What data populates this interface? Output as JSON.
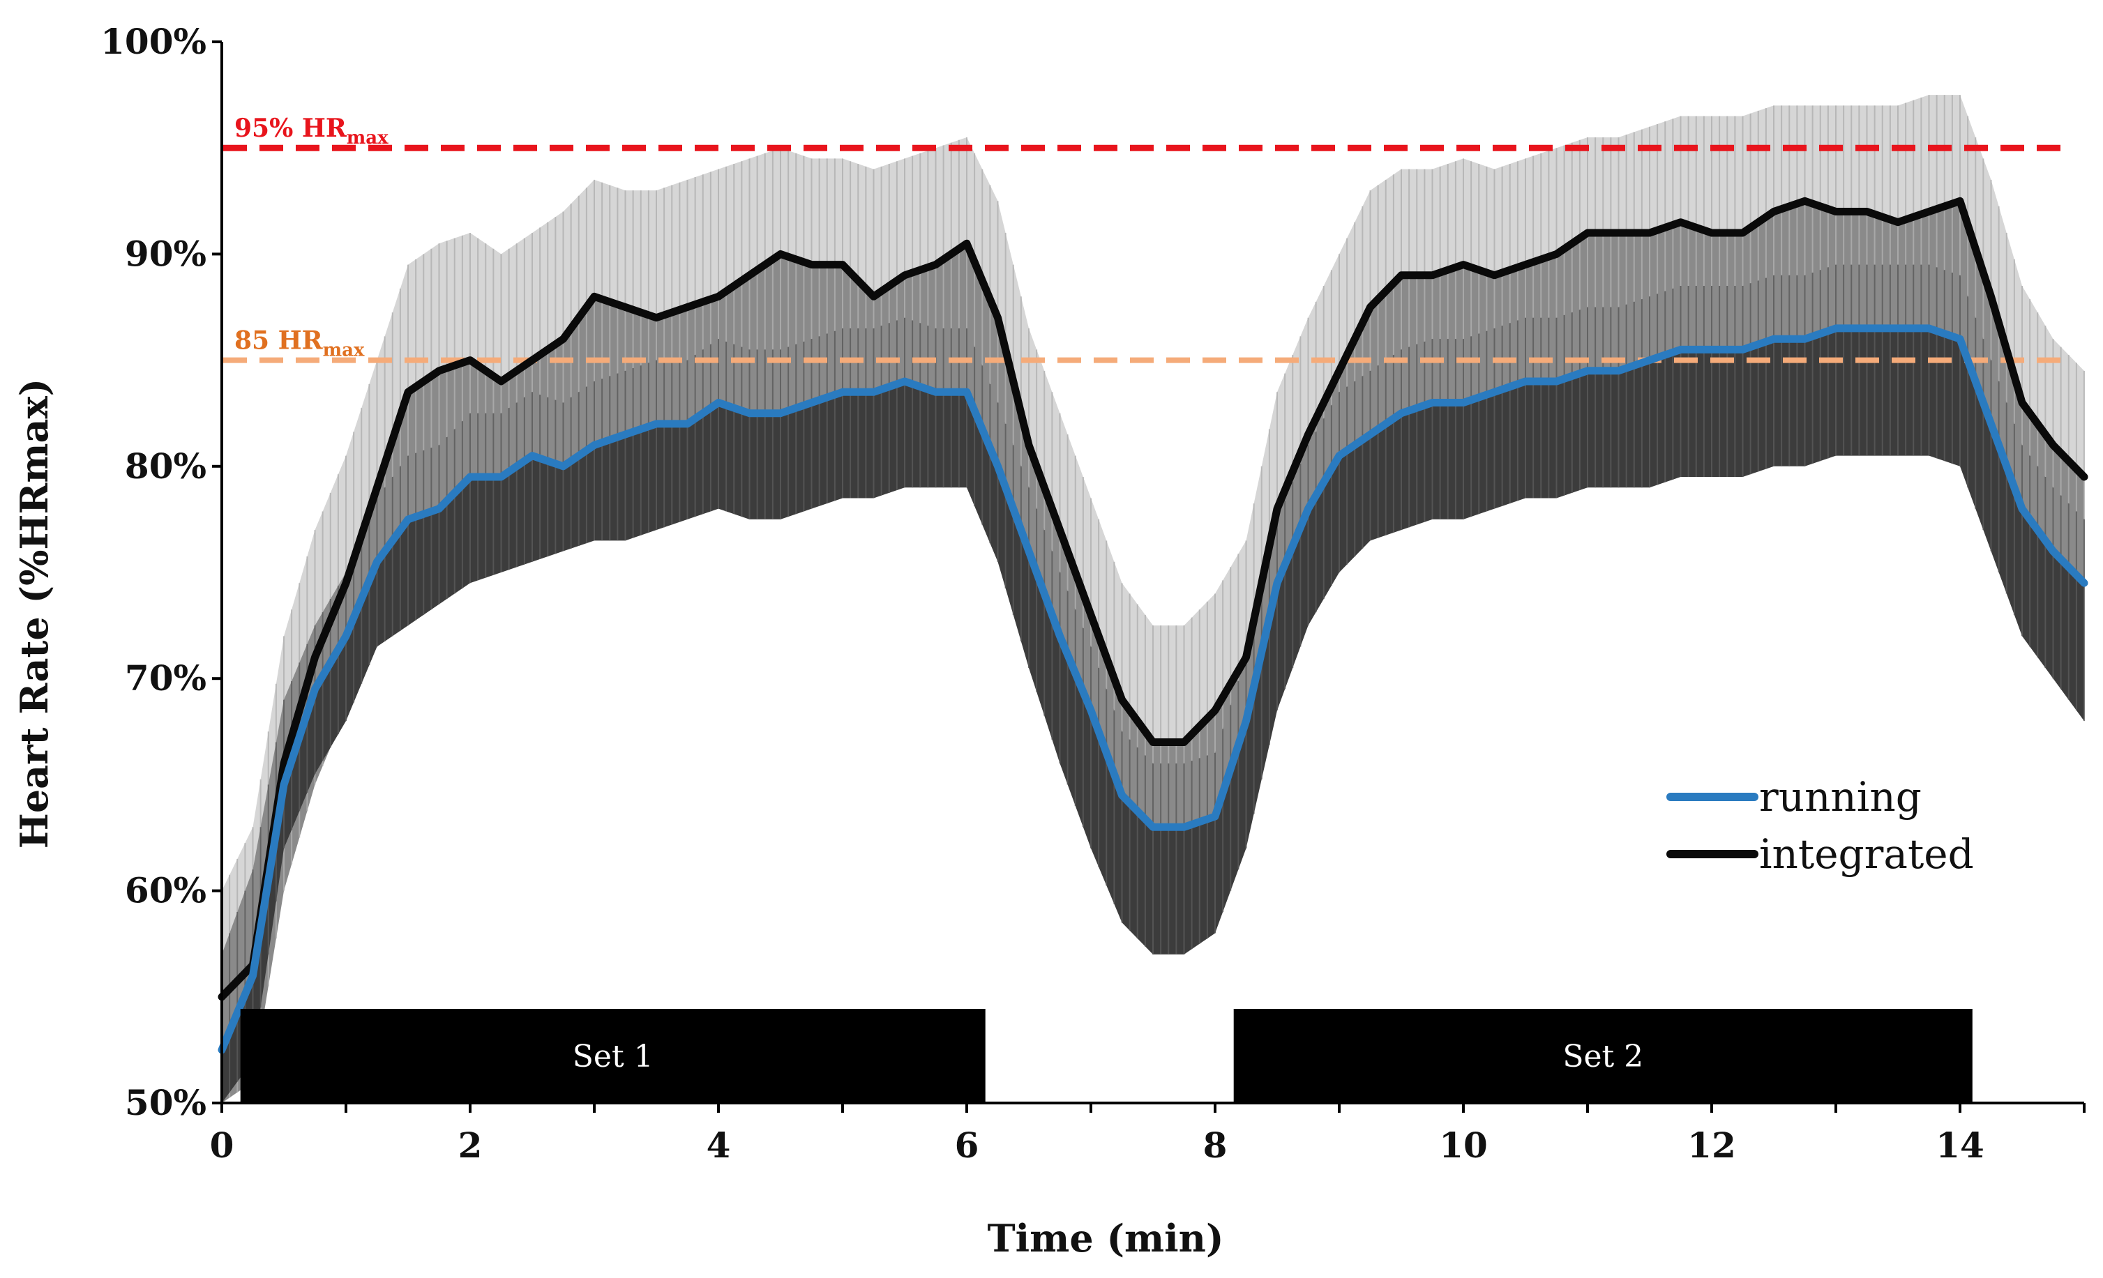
{
  "chart_data": {
    "type": "line",
    "title": "",
    "xlabel": "Time (min)",
    "ylabel": "Heart Rate (%HRmax)",
    "xlim": [
      0,
      15
    ],
    "ylim": [
      50,
      100
    ],
    "x_ticks": [
      0,
      2,
      4,
      6,
      8,
      10,
      12,
      14
    ],
    "x_tick_labels": [
      "0",
      "2",
      "4",
      "6",
      "8",
      "10",
      "12",
      "14"
    ],
    "y_ticks": [
      50,
      60,
      70,
      80,
      90,
      100
    ],
    "y_tick_labels": [
      "50%",
      "60%",
      "70%",
      "80%",
      "90%",
      "100%"
    ],
    "x": [
      0,
      0.25,
      0.5,
      0.75,
      1,
      1.25,
      1.5,
      1.75,
      2,
      2.25,
      2.5,
      2.75,
      3,
      3.25,
      3.5,
      3.75,
      4,
      4.25,
      4.5,
      4.75,
      5,
      5.25,
      5.5,
      5.75,
      6,
      6.25,
      6.5,
      6.75,
      7,
      7.25,
      7.5,
      7.75,
      8,
      8.25,
      8.5,
      8.75,
      9,
      9.25,
      9.5,
      9.75,
      10,
      10.25,
      10.5,
      10.75,
      11,
      11.25,
      11.5,
      11.75,
      12,
      12.25,
      12.5,
      12.75,
      13,
      13.25,
      13.5,
      13.75,
      14,
      14.25,
      14.5,
      14.75,
      15
    ],
    "series": [
      {
        "name": "running",
        "color": "#2a7bc0",
        "values": [
          52.5,
          56,
          65,
          69.5,
          72,
          75.5,
          77.5,
          78,
          79.5,
          79.5,
          80.5,
          80,
          81,
          81.5,
          82,
          82,
          83,
          82.5,
          82.5,
          83,
          83.5,
          83.5,
          84,
          83.5,
          83.5,
          80,
          76,
          72,
          68.5,
          64.5,
          63,
          63,
          63.5,
          68,
          74.5,
          78,
          80.5,
          81.5,
          82.5,
          83,
          83,
          83.5,
          84,
          84,
          84.5,
          84.5,
          85,
          85.5,
          85.5,
          85.5,
          86,
          86,
          86.5,
          86.5,
          86.5,
          86.5,
          86,
          82,
          78,
          76,
          74.5
        ],
        "error_upper": [
          57,
          61,
          69,
          72.5,
          75,
          78.5,
          80.5,
          81,
          82.5,
          82.5,
          83.5,
          83,
          84,
          84.5,
          85,
          85,
          86,
          85.5,
          85.5,
          86,
          86.5,
          86.5,
          87,
          86.5,
          86.5,
          83,
          79,
          75,
          71.5,
          67.5,
          66,
          66,
          66.5,
          71,
          77.5,
          81,
          83.5,
          84.5,
          85.5,
          86,
          86,
          86.5,
          87,
          87,
          87.5,
          87.5,
          88,
          88.5,
          88.5,
          88.5,
          89,
          89,
          89.5,
          89.5,
          89.5,
          89.5,
          89,
          85,
          81,
          79,
          77.5
        ],
        "error_lower": [
          50,
          52,
          62,
          65.5,
          68,
          71.5,
          72.5,
          73.5,
          74.5,
          75,
          75.5,
          76,
          76.5,
          76.5,
          77,
          77.5,
          78,
          77.5,
          77.5,
          78,
          78.5,
          78.5,
          79,
          79,
          79,
          75.5,
          70.5,
          66,
          62,
          58.5,
          57,
          57,
          58,
          62,
          68.5,
          72.5,
          75,
          76.5,
          77,
          77.5,
          77.5,
          78,
          78.5,
          78.5,
          79,
          79,
          79,
          79.5,
          79.5,
          79.5,
          80,
          80,
          80.5,
          80.5,
          80.5,
          80.5,
          80,
          76,
          72,
          70,
          68
        ]
      },
      {
        "name": "integrated",
        "color": "#0a0a0a",
        "values": [
          55,
          56.5,
          66,
          71,
          74.5,
          79,
          83.5,
          84.5,
          85,
          84,
          85,
          86,
          88,
          87.5,
          87,
          87.5,
          88,
          89,
          90,
          89.5,
          89.5,
          88,
          89,
          89.5,
          90.5,
          87,
          81,
          77,
          73,
          69,
          67,
          67,
          68.5,
          71,
          78,
          81.5,
          84.5,
          87.5,
          89,
          89,
          89.5,
          89,
          89.5,
          90,
          91,
          91,
          91,
          91.5,
          91,
          91,
          92,
          92.5,
          92,
          92,
          91.5,
          92,
          92.5,
          88,
          83,
          81,
          79.5
        ],
        "error_upper": [
          60,
          63,
          72,
          77,
          80.5,
          85,
          89.5,
          90.5,
          91,
          90,
          91,
          92,
          93.5,
          93,
          93,
          93.5,
          94,
          94.5,
          95,
          94.5,
          94.5,
          94,
          94.5,
          95,
          95.5,
          92.5,
          86.5,
          82.5,
          78.5,
          74.5,
          72.5,
          72.5,
          74,
          76.5,
          83.5,
          87,
          90,
          93,
          94,
          94,
          94.5,
          94,
          94.5,
          95,
          95.5,
          95.5,
          96,
          96.5,
          96.5,
          96.5,
          97,
          97,
          97,
          97,
          97,
          97.5,
          97.5,
          93.5,
          88.5,
          86,
          84.5
        ],
        "error_lower": [
          50,
          51,
          60,
          65,
          68.5,
          73,
          77.5,
          78.5,
          79,
          78,
          79,
          80,
          82.5,
          82,
          81,
          81.5,
          82,
          83.5,
          85,
          84.5,
          84.5,
          82,
          83.5,
          84,
          85.5,
          81.5,
          75.5,
          71.5,
          67.5,
          63.5,
          61.5,
          61.5,
          63,
          65.5,
          72.5,
          76,
          79,
          82,
          84,
          84,
          84.5,
          84,
          84.5,
          85,
          86.5,
          86.5,
          86,
          86.5,
          85.5,
          85.5,
          87,
          88,
          87,
          87,
          86,
          86.5,
          87.5,
          82.5,
          77.5,
          76,
          74.5
        ]
      }
    ],
    "reference_lines": [
      {
        "value": 95,
        "label": "95% HR",
        "subscript": "max",
        "color": "#e8141c"
      },
      {
        "value": 85,
        "label": "85 HR",
        "subscript": "max",
        "color": "#f5ab79",
        "label_color": "#e07020"
      }
    ],
    "phase_bars": [
      {
        "label": "Set 1",
        "start": 0.15,
        "end": 6.15
      },
      {
        "label": "Set 2",
        "start": 8.15,
        "end": 14.1
      }
    ],
    "legend": {
      "position": "bottom-right",
      "entries": [
        "running",
        "integrated"
      ]
    }
  }
}
